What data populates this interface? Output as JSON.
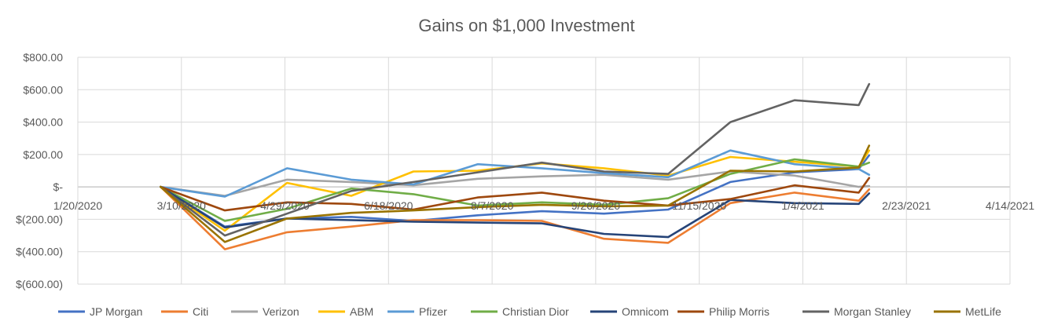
{
  "chart_data": {
    "type": "line",
    "title": "Gains on $1,000 Investment",
    "xlabel": "",
    "ylabel": "",
    "x_axis": {
      "min": "2020-01-20",
      "max": "2021-04-14",
      "ticks": [
        "2020-01-20",
        "2020-03-10",
        "2020-04-29",
        "2020-06-18",
        "2020-08-07",
        "2020-09-26",
        "2020-11-15",
        "2021-01-04",
        "2021-02-23",
        "2021-04-14"
      ],
      "tick_labels": [
        "1/20/2020",
        "3/10/2020",
        "4/29/2020",
        "6/18/2020",
        "8/7/2020",
        "9/26/2020",
        "11/15/2020",
        "1/4/2021",
        "2/23/2021",
        "4/14/2021"
      ]
    },
    "y_axis": {
      "min": -600,
      "max": 800,
      "ticks": [
        800,
        600,
        400,
        200,
        0,
        -200,
        -400,
        -600
      ],
      "tick_labels": [
        "$800.00",
        "$600.00",
        "$400.00",
        "$200.00",
        "$-",
        "$(200.00)",
        "$(400.00)",
        "$(600.00)"
      ]
    },
    "grid": true,
    "legend_position": "bottom",
    "x": [
      "2020-02-29",
      "2020-03-31",
      "2020-04-30",
      "2020-05-31",
      "2020-06-30",
      "2020-07-31",
      "2020-08-31",
      "2020-09-30",
      "2020-10-31",
      "2020-11-30",
      "2020-12-31",
      "2021-01-31",
      "2021-02-05"
    ],
    "series": [
      {
        "name": "JP Morgan",
        "color": "#4472c4",
        "values": [
          0,
          -245,
          -195,
          -185,
          -210,
          -175,
          -150,
          -165,
          -140,
          30,
          90,
          110,
          195
        ]
      },
      {
        "name": "Citi",
        "color": "#ed7d31",
        "values": [
          0,
          -385,
          -280,
          -245,
          -205,
          -205,
          -210,
          -320,
          -345,
          -100,
          -35,
          -85,
          -15
        ]
      },
      {
        "name": "Verizon",
        "color": "#a5a5a5",
        "values": [
          0,
          -55,
          45,
          30,
          10,
          50,
          65,
          75,
          45,
          95,
          70,
          0,
          5
        ]
      },
      {
        "name": "ABM",
        "color": "#ffc000",
        "values": [
          0,
          -270,
          25,
          -55,
          95,
          100,
          145,
          115,
          70,
          185,
          155,
          125,
          225
        ]
      },
      {
        "name": "Pfizer",
        "color": "#5b9bd5",
        "values": [
          0,
          -60,
          115,
          45,
          15,
          140,
          115,
          85,
          60,
          225,
          140,
          110,
          75
        ]
      },
      {
        "name": "Christian Dior",
        "color": "#70ad47",
        "values": [
          0,
          -210,
          -135,
          -10,
          -45,
          -115,
          -95,
          -110,
          -70,
          80,
          170,
          125,
          150
        ]
      },
      {
        "name": "Omnicom",
        "color": "#264478",
        "values": [
          0,
          -250,
          -195,
          -205,
          -215,
          -220,
          -225,
          -290,
          -310,
          -80,
          -100,
          -105,
          -40
        ]
      },
      {
        "name": "Philip Morris",
        "color": "#9e480e",
        "values": [
          0,
          -145,
          -95,
          -105,
          -140,
          -65,
          -35,
          -85,
          -115,
          -75,
          10,
          -35,
          55
        ]
      },
      {
        "name": "Morgan Stanley",
        "color": "#636363",
        "values": [
          0,
          -300,
          -165,
          -25,
          30,
          90,
          150,
          95,
          80,
          400,
          535,
          505,
          635
        ]
      },
      {
        "name": "MetLife",
        "color": "#997300",
        "values": [
          0,
          -340,
          -195,
          -160,
          -145,
          -125,
          -110,
          -120,
          -115,
          100,
          95,
          120,
          255
        ]
      }
    ]
  }
}
